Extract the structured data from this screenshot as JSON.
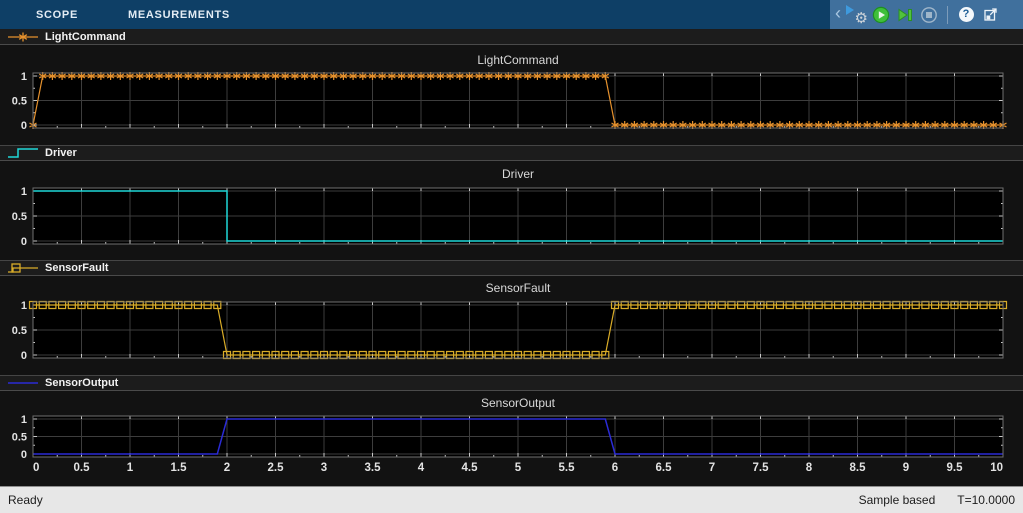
{
  "toolbar": {
    "tabs": [
      {
        "label": "SCOPE"
      },
      {
        "label": "MEASUREMENTS"
      }
    ],
    "chevron_glyph": "‹",
    "help_glyph": "?"
  },
  "status_bar": {
    "ready": "Ready",
    "sample_mode": "Sample based",
    "time": "T=10.0000"
  },
  "colors": {
    "toolbar_bg": "#0e3f66",
    "icon_area_bg": "#40709d",
    "header_bg": "#1c1c1c",
    "outer_bg": "#121212",
    "plot_bg": "#000000",
    "grid": "#3d3d3d",
    "axis_border": "#707070",
    "tick": "#c9c9c9",
    "tick_label": "#e3e3e3",
    "title": "#d9d9d9",
    "status_bg": "#e7e7e7",
    "run_green": "#3fbf3a",
    "light_command": "#e5912d",
    "driver": "#1fd8d8",
    "sensor_fault": "#d9ac28",
    "sensor_output": "#2b2bd5"
  },
  "chart_data": [
    {
      "type": "line",
      "title": "LightCommand",
      "legend": "LightCommand",
      "color": "#e5912d",
      "marker": "asterisk",
      "x_range": [
        0,
        10
      ],
      "y_range": [
        0,
        1
      ],
      "sample_step": 0.1,
      "breakpoints": [
        {
          "t": 0,
          "v": 0
        },
        {
          "t": 0.1,
          "v": 1
        },
        {
          "t": 6,
          "v": 0
        }
      ],
      "y_ticks": [
        {
          "v": 1,
          "label": "1"
        },
        {
          "v": 0.5,
          "label": "0.5"
        },
        {
          "v": 0,
          "label": "0"
        }
      ]
    },
    {
      "type": "line",
      "title": "Driver",
      "legend": "Driver",
      "color": "#1fd8d8",
      "marker": "none",
      "x_range": [
        0,
        10
      ],
      "y_range": [
        0,
        1
      ],
      "points": [
        [
          0,
          1
        ],
        [
          2,
          1
        ],
        [
          2,
          0
        ],
        [
          10,
          0
        ]
      ],
      "y_ticks": [
        {
          "v": 1,
          "label": "1"
        },
        {
          "v": 0.5,
          "label": "0.5"
        },
        {
          "v": 0,
          "label": "0"
        }
      ]
    },
    {
      "type": "line",
      "title": "SensorFault",
      "legend": "SensorFault",
      "color": "#d9ac28",
      "marker": "square",
      "x_range": [
        0,
        10
      ],
      "y_range": [
        0,
        1
      ],
      "sample_step": 0.1,
      "breakpoints": [
        {
          "t": 0,
          "v": 1
        },
        {
          "t": 2,
          "v": 0
        },
        {
          "t": 6,
          "v": 1
        }
      ],
      "y_ticks": [
        {
          "v": 1,
          "label": "1"
        },
        {
          "v": 0.5,
          "label": "0.5"
        },
        {
          "v": 0,
          "label": "0"
        }
      ]
    },
    {
      "type": "line",
      "title": "SensorOutput",
      "legend": "SensorOutput",
      "color": "#2b2bd5",
      "marker": "none",
      "x_range": [
        0,
        10
      ],
      "y_range": [
        0,
        1
      ],
      "points": [
        [
          0,
          0
        ],
        [
          1.9,
          0
        ],
        [
          2,
          1
        ],
        [
          5.9,
          1
        ],
        [
          6,
          0
        ],
        [
          10,
          0
        ]
      ],
      "y_ticks": [
        {
          "v": 1,
          "label": "1"
        },
        {
          "v": 0.5,
          "label": "0.5"
        },
        {
          "v": 0,
          "label": "0"
        }
      ],
      "x_ticks": [
        {
          "t": 0,
          "label": "0"
        },
        {
          "t": 0.5,
          "label": "0.5"
        },
        {
          "t": 1,
          "label": "1"
        },
        {
          "t": 1.5,
          "label": "1.5"
        },
        {
          "t": 2,
          "label": "2"
        },
        {
          "t": 2.5,
          "label": "2.5"
        },
        {
          "t": 3,
          "label": "3"
        },
        {
          "t": 3.5,
          "label": "3.5"
        },
        {
          "t": 4,
          "label": "4"
        },
        {
          "t": 4.5,
          "label": "4.5"
        },
        {
          "t": 5,
          "label": "5"
        },
        {
          "t": 5.5,
          "label": "5.5"
        },
        {
          "t": 6,
          "label": "6"
        },
        {
          "t": 6.5,
          "label": "6.5"
        },
        {
          "t": 7,
          "label": "7"
        },
        {
          "t": 7.5,
          "label": "7.5"
        },
        {
          "t": 8,
          "label": "8"
        },
        {
          "t": 8.5,
          "label": "8.5"
        },
        {
          "t": 9,
          "label": "9"
        },
        {
          "t": 9.5,
          "label": "9.5"
        },
        {
          "t": 10,
          "label": "10"
        }
      ]
    }
  ]
}
